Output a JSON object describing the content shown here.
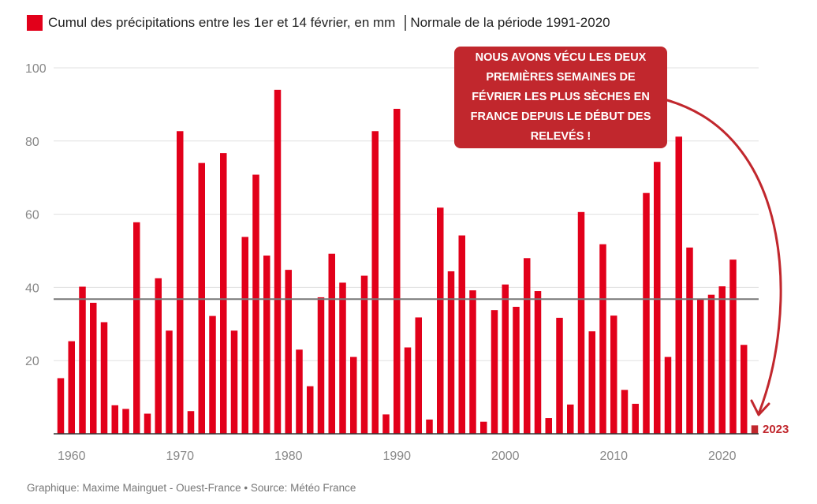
{
  "legend": {
    "series_label": "Cumul des précipitations entre les 1er et 14 février, en mm",
    "normal_label": "Normale de la période 1991-2020"
  },
  "callout": "NOUS AVONS VÉCU LES DEUX PREMIÈRES SEMAINES DE FÉVRIER LES PLUS SÈCHES EN FRANCE DEPUIS LE DÉBUT DES RELEVÉS !",
  "footer": "Graphique: Maxime Mainguet - Ouest-France • Source: Météo France",
  "colors": {
    "bar": "#e2001a",
    "highlight": "#c1272d",
    "normal_line": "#777777",
    "grid": "#e0e0e0",
    "arrow": "#c1272d"
  },
  "chart_data": {
    "type": "bar",
    "x": [
      1959,
      1960,
      1961,
      1962,
      1963,
      1964,
      1965,
      1966,
      1967,
      1968,
      1969,
      1970,
      1971,
      1972,
      1973,
      1974,
      1975,
      1976,
      1977,
      1978,
      1979,
      1980,
      1981,
      1982,
      1983,
      1984,
      1985,
      1986,
      1987,
      1988,
      1989,
      1990,
      1991,
      1992,
      1993,
      1994,
      1995,
      1996,
      1997,
      1998,
      1999,
      2000,
      2001,
      2002,
      2003,
      2004,
      2005,
      2006,
      2007,
      2008,
      2009,
      2010,
      2011,
      2012,
      2013,
      2014,
      2015,
      2016,
      2017,
      2018,
      2019,
      2020,
      2021,
      2022,
      2023
    ],
    "values": [
      15.2,
      25.3,
      40.2,
      35.8,
      30.5,
      7.8,
      6.8,
      57.8,
      5.5,
      42.5,
      28.2,
      82.7,
      6.2,
      74.0,
      32.2,
      76.7,
      28.2,
      53.8,
      70.8,
      48.7,
      94.0,
      44.8,
      23.0,
      13.0,
      37.3,
      49.2,
      41.3,
      21.0,
      43.2,
      82.7,
      5.3,
      88.8,
      23.6,
      31.8,
      3.9,
      61.8,
      44.4,
      54.2,
      39.2,
      3.3,
      33.8,
      40.8,
      34.7,
      48.0,
      39.0,
      4.3,
      31.7,
      8.0,
      60.6,
      28.0,
      51.8,
      32.3,
      12.0,
      8.2,
      65.8,
      74.3,
      21.0,
      81.2,
      50.9,
      36.8,
      38.0,
      40.3,
      47.6,
      24.3,
      2.3
    ],
    "normal": 36.8,
    "ylim": [
      0,
      100
    ],
    "yticks": [
      20,
      40,
      60,
      80,
      100
    ],
    "xticks": [
      1960,
      1970,
      1980,
      1990,
      2000,
      2010,
      2020
    ],
    "highlight": {
      "year": 2023,
      "label": "2023"
    },
    "grid": true
  }
}
